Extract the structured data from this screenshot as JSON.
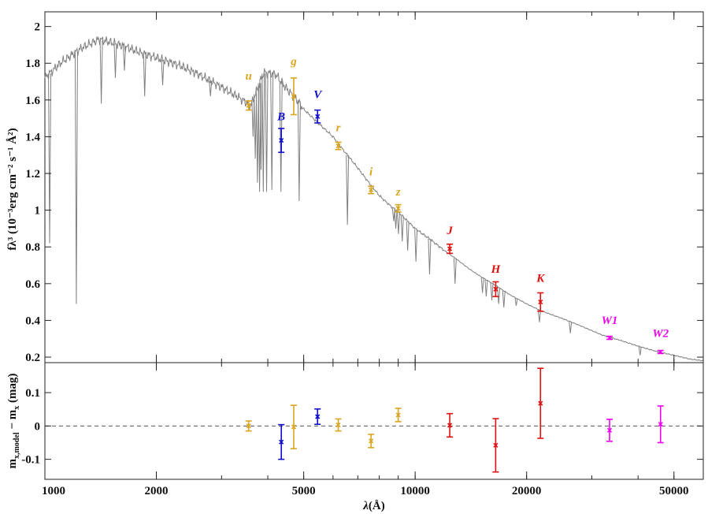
{
  "chart_data": [
    {
      "type": "line",
      "panel": "top",
      "xscale": "log",
      "xlim": [
        1000,
        60000
      ],
      "ylim": [
        0.17,
        2.08
      ],
      "ylabel": "fλ³ (10⁻³erg cm⁻² s⁻¹ Å²)",
      "yticks": [
        0.2,
        0.4,
        0.6,
        0.8,
        1,
        1.2,
        1.4,
        1.6,
        1.8,
        2
      ],
      "ytick_labels": [
        "0.2",
        "0.4",
        "0.6",
        "0.8",
        "1",
        "1.2",
        "1.4",
        "1.6",
        "1.8",
        "2"
      ],
      "grid": false,
      "colors": {
        "model": "#808080",
        "orange": "#DAA520",
        "blue": "#1010CC",
        "red": "#DD1111",
        "magenta": "#EE00EE"
      },
      "model_continuum": {
        "x": [
          1000,
          1100,
          1250,
          1400,
          1600,
          1800,
          2000,
          2300,
          2600,
          3000,
          3300,
          3600,
          3900,
          4200,
          4500,
          4800,
          5000,
          5500,
          6000,
          6500,
          7000,
          7500,
          8000,
          8500,
          9000,
          10000,
          11000,
          12000,
          13000,
          14000,
          15000,
          16500,
          18000,
          20000,
          22000,
          25000,
          28000,
          32000,
          36000,
          40000,
          45000,
          50000,
          55000,
          60000
        ],
        "y": [
          1.72,
          1.8,
          1.88,
          1.93,
          1.9,
          1.86,
          1.83,
          1.79,
          1.74,
          1.67,
          1.62,
          1.57,
          1.75,
          1.74,
          1.66,
          1.6,
          1.55,
          1.47,
          1.4,
          1.31,
          1.23,
          1.15,
          1.08,
          1.03,
          0.99,
          0.9,
          0.84,
          0.78,
          0.73,
          0.68,
          0.64,
          0.59,
          0.54,
          0.49,
          0.45,
          0.41,
          0.37,
          0.32,
          0.29,
          0.26,
          0.23,
          0.21,
          0.19,
          0.18
        ]
      },
      "model_absorption_lines": [
        {
          "x": 1030,
          "y": 0.82
        },
        {
          "x": 1216,
          "y": 0.49
        },
        {
          "x": 1420,
          "y": 1.58
        },
        {
          "x": 1550,
          "y": 1.72
        },
        {
          "x": 1640,
          "y": 1.76
        },
        {
          "x": 1860,
          "y": 1.62
        },
        {
          "x": 2080,
          "y": 1.68
        },
        {
          "x": 2800,
          "y": 1.62
        },
        {
          "x": 3650,
          "y": 1.4
        },
        {
          "x": 3700,
          "y": 1.28
        },
        {
          "x": 3750,
          "y": 1.15
        },
        {
          "x": 3800,
          "y": 1.1
        },
        {
          "x": 3835,
          "y": 1.22
        },
        {
          "x": 3889,
          "y": 1.1
        },
        {
          "x": 3970,
          "y": 1.1
        },
        {
          "x": 4102,
          "y": 1.11
        },
        {
          "x": 4340,
          "y": 1.1
        },
        {
          "x": 4861,
          "y": 1.05
        },
        {
          "x": 6563,
          "y": 0.92
        },
        {
          "x": 8750,
          "y": 0.94
        },
        {
          "x": 8865,
          "y": 0.9
        },
        {
          "x": 9015,
          "y": 0.87
        },
        {
          "x": 9229,
          "y": 0.83
        },
        {
          "x": 9546,
          "y": 0.78
        },
        {
          "x": 10049,
          "y": 0.72
        },
        {
          "x": 10938,
          "y": 0.65
        },
        {
          "x": 12818,
          "y": 0.6
        },
        {
          "x": 15200,
          "y": 0.55
        },
        {
          "x": 15560,
          "y": 0.53
        },
        {
          "x": 16110,
          "y": 0.51
        },
        {
          "x": 16810,
          "y": 0.49
        },
        {
          "x": 17360,
          "y": 0.47
        },
        {
          "x": 18750,
          "y": 0.48
        },
        {
          "x": 21660,
          "y": 0.39
        },
        {
          "x": 26250,
          "y": 0.33
        },
        {
          "x": 40500,
          "y": 0.21
        }
      ],
      "photometry": [
        {
          "band": "u",
          "x": 3550,
          "y": 1.57,
          "err": 0.025,
          "color": "#DAA520",
          "label_y": 1.71
        },
        {
          "band": "B",
          "x": 4350,
          "y": 1.38,
          "err": 0.065,
          "color": "#1010CC",
          "label_y": 1.49
        },
        {
          "band": "g",
          "x": 4700,
          "y": 1.62,
          "err": 0.1,
          "color": "#DAA520",
          "label_y": 1.79
        },
        {
          "band": "V",
          "x": 5450,
          "y": 1.51,
          "err": 0.035,
          "color": "#1010CC",
          "label_y": 1.61
        },
        {
          "band": "r",
          "x": 6200,
          "y": 1.35,
          "err": 0.02,
          "color": "#DAA520",
          "label_y": 1.43
        },
        {
          "band": "i",
          "x": 7600,
          "y": 1.11,
          "err": 0.02,
          "color": "#DAA520",
          "label_y": 1.19
        },
        {
          "band": "z",
          "x": 9000,
          "y": 1.01,
          "err": 0.02,
          "color": "#DAA520",
          "label_y": 1.08
        },
        {
          "band": "J",
          "x": 12400,
          "y": 0.79,
          "err": 0.025,
          "color": "#DD1111",
          "label_y": 0.87
        },
        {
          "band": "H",
          "x": 16500,
          "y": 0.57,
          "err": 0.04,
          "color": "#DD1111",
          "label_y": 0.66
        },
        {
          "band": "K",
          "x": 21800,
          "y": 0.5,
          "err": 0.05,
          "color": "#DD1111",
          "label_y": 0.61
        },
        {
          "band": "W1",
          "x": 33500,
          "y": 0.305,
          "err": 0.008,
          "color": "#EE00EE",
          "label_y": 0.38
        },
        {
          "band": "W2",
          "x": 46000,
          "y": 0.228,
          "err": 0.008,
          "color": "#EE00EE",
          "label_y": 0.31
        }
      ]
    },
    {
      "type": "scatter",
      "panel": "bottom",
      "xscale": "log",
      "xlim": [
        1000,
        60000
      ],
      "ylim": [
        -0.16,
        0.19
      ],
      "xlabel": "λ(Å)",
      "ylabel": "m_x,model − m_x (mag)",
      "ylabel_main": "m",
      "ylabel_sub": "x,model",
      "ylabel_rest": " − m",
      "ylabel_sub2": "x",
      "ylabel_unit": " (mag)",
      "xlabel_main": "λ",
      "xlabel_unit": "(Å)",
      "xticks": [
        1000,
        2000,
        5000,
        10000,
        20000,
        50000
      ],
      "xtick_labels": [
        "1000",
        "2000",
        "5000",
        "10000",
        "20000",
        "50000"
      ],
      "yticks": [
        -0.1,
        0,
        0.1
      ],
      "ytick_labels": [
        "-0.1",
        "0",
        "0.1"
      ],
      "reference_line": 0,
      "grid": false,
      "residuals": [
        {
          "band": "u",
          "x": 3550,
          "y": 0.0,
          "err": 0.015,
          "color": "#DAA520"
        },
        {
          "band": "B",
          "x": 4350,
          "y": -0.048,
          "err": 0.052,
          "color": "#1010CC"
        },
        {
          "band": "g",
          "x": 4700,
          "y": -0.003,
          "err": 0.065,
          "color": "#DAA520"
        },
        {
          "band": "V",
          "x": 5450,
          "y": 0.028,
          "err": 0.023,
          "color": "#1010CC"
        },
        {
          "band": "r",
          "x": 6200,
          "y": 0.003,
          "err": 0.018,
          "color": "#DAA520"
        },
        {
          "band": "i",
          "x": 7600,
          "y": -0.045,
          "err": 0.02,
          "color": "#DAA520"
        },
        {
          "band": "z",
          "x": 9000,
          "y": 0.033,
          "err": 0.02,
          "color": "#DAA520"
        },
        {
          "band": "J",
          "x": 12400,
          "y": 0.002,
          "err": 0.035,
          "color": "#DD1111"
        },
        {
          "band": "H",
          "x": 16500,
          "y": -0.058,
          "err": 0.08,
          "color": "#DD1111"
        },
        {
          "band": "K",
          "x": 21800,
          "y": 0.068,
          "err": 0.105,
          "color": "#DD1111"
        },
        {
          "band": "W1",
          "x": 33500,
          "y": -0.013,
          "err": 0.033,
          "color": "#EE00EE"
        },
        {
          "band": "W2",
          "x": 46000,
          "y": 0.005,
          "err": 0.055,
          "color": "#EE00EE"
        }
      ]
    }
  ]
}
